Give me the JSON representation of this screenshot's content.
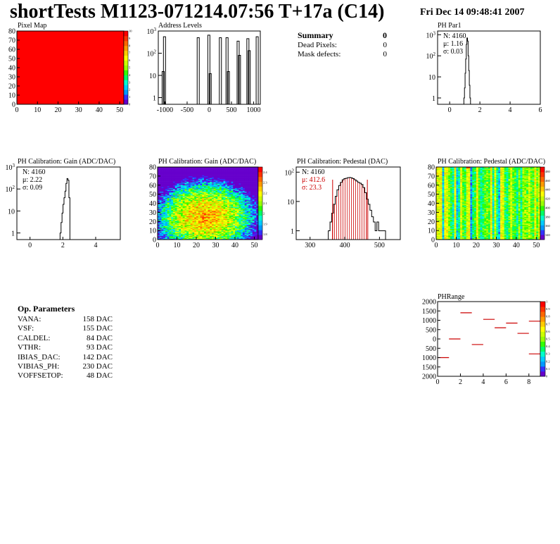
{
  "header": {
    "title": "shortTests M1123-071214.07:56 T+17a (C14)",
    "date": "Fri Dec 14 09:48:41 2007"
  },
  "summary": {
    "title": "Summary",
    "value": "0",
    "rows": [
      {
        "label": "Dead Pixels:",
        "value": "0"
      },
      {
        "label": "Mask defects:",
        "value": "0"
      }
    ]
  },
  "op_parameters": {
    "title": "Op. Parameters",
    "rows": [
      {
        "label": "VANA:",
        "value": "158 DAC"
      },
      {
        "label": "VSF:",
        "value": "155 DAC"
      },
      {
        "label": "CALDEL:",
        "value": "84 DAC"
      },
      {
        "label": "VTHR:",
        "value": "93 DAC"
      },
      {
        "label": "IBIAS_DAC:",
        "value": "142 DAC"
      },
      {
        "label": "VIBIAS_PH:",
        "value": "230 DAC"
      },
      {
        "label": "VOFFSETOP:",
        "value": "48 DAC"
      }
    ]
  },
  "colors": {
    "palette": [
      "#6600cc",
      "#3333ff",
      "#0099ff",
      "#00ccff",
      "#00ffcc",
      "#00ff66",
      "#33ff00",
      "#99ff00",
      "#ccff00",
      "#ffff00",
      "#ffcc00",
      "#ff9900",
      "#ff6600",
      "#ff3300",
      "#ff0000"
    ],
    "stats_red": "#cc0000"
  },
  "chart_data": [
    {
      "id": "pixel-map",
      "type": "heatmap",
      "title": "Pixel Map",
      "x_ticks": [
        "0",
        "10",
        "20",
        "30",
        "40",
        "50"
      ],
      "y_ticks": [
        "0",
        "10",
        "20",
        "30",
        "40",
        "50",
        "60",
        "70",
        "80"
      ],
      "xlim": [
        0,
        52
      ],
      "ylim": [
        0,
        80
      ],
      "fill_value": 10,
      "z_ticks": [
        "0",
        "1",
        "2",
        "3",
        "4",
        "5",
        "6",
        "7",
        "8",
        "9",
        "10"
      ],
      "zlim": [
        0,
        10
      ]
    },
    {
      "id": "address-levels",
      "type": "bar",
      "title": "Address Levels",
      "log_y": true,
      "x_ticks": [
        "-1000",
        "-500",
        "0",
        "500",
        "1000"
      ],
      "xlim": [
        -1150,
        1150
      ],
      "y_ticks": [
        "1",
        "10",
        "10^2",
        "10^3"
      ],
      "ylim": [
        0.5,
        1000
      ],
      "peaks": [
        {
          "x": -1040,
          "value": 15
        },
        {
          "x": -1010,
          "value": 550
        },
        {
          "x": -250,
          "value": 500
        },
        {
          "x": -10,
          "value": 650
        },
        {
          "x": 20,
          "value": 12
        },
        {
          "x": 250,
          "value": 500
        },
        {
          "x": 400,
          "value": 500
        },
        {
          "x": 430,
          "value": 15
        },
        {
          "x": 650,
          "value": 350
        },
        {
          "x": 680,
          "value": 80
        },
        {
          "x": 870,
          "value": 450
        },
        {
          "x": 900,
          "value": 130
        },
        {
          "x": 1080,
          "value": 550
        }
      ]
    },
    {
      "id": "ph-par1",
      "type": "bar",
      "title": "PH Par1",
      "log_y": true,
      "x_ticks": [
        "0",
        "2",
        "4",
        "6"
      ],
      "xlim": [
        -0.8,
        6
      ],
      "y_ticks": [
        "1",
        "10",
        "10^2",
        "10^3"
      ],
      "ylim": [
        0.5,
        1500
      ],
      "stats": {
        "N": "N: 4160",
        "mean": "μ: 1.16",
        "rms": "σ: 0.03"
      },
      "x": [
        0.96,
        1.0,
        1.04,
        1.08,
        1.12,
        1.16,
        1.2,
        1.24,
        1.28,
        1.32,
        1.36
      ],
      "values": [
        1,
        3,
        15,
        70,
        350,
        700,
        500,
        100,
        20,
        4,
        1
      ]
    },
    {
      "id": "ph-gain-hist",
      "type": "bar",
      "title": "PH Calibration: Gain (ADC/DAC)",
      "log_y": true,
      "x_ticks": [
        "0",
        "2",
        "4"
      ],
      "xlim": [
        -0.8,
        5.5
      ],
      "y_ticks": [
        "1",
        "10",
        "10^2",
        "10^3"
      ],
      "ylim": [
        0.5,
        1000
      ],
      "stats": {
        "N": "N: 4160",
        "mean": "μ: 2.22",
        "rms": "σ: 0.09"
      },
      "x": [
        1.86,
        1.92,
        1.98,
        2.04,
        2.1,
        2.16,
        2.22,
        2.28,
        2.34,
        2.4
      ],
      "values": [
        1,
        3,
        8,
        20,
        40,
        80,
        180,
        300,
        250,
        40
      ]
    },
    {
      "id": "ph-gain-map",
      "type": "heatmap",
      "title": "PH Calibration: Gain (ADC/DAC)",
      "x_ticks": [
        "0",
        "10",
        "20",
        "30",
        "40",
        "50"
      ],
      "y_ticks": [
        "0",
        "10",
        "20",
        "30",
        "40",
        "50",
        "60",
        "70",
        "80"
      ],
      "xlim": [
        0,
        52
      ],
      "ylim": [
        0,
        80
      ],
      "z_ticks": [
        "1.8",
        "1.9",
        "2",
        "2.1",
        "2.2",
        "2.3",
        "2.4"
      ],
      "zlim": [
        1.75,
        2.45
      ]
    },
    {
      "id": "ph-pedestal-hist",
      "type": "bar",
      "title": "PH Calibration: Pedestal (DAC)",
      "log_y": true,
      "x_ticks": [
        "300",
        "400",
        "500"
      ],
      "xlim": [
        260,
        560
      ],
      "y_ticks": [
        "1",
        "10",
        "10^2"
      ],
      "ylim": [
        0.5,
        150
      ],
      "stats": {
        "N": "N: 4160",
        "mean": "μ: 412.6",
        "rms": "σ: 23.3"
      },
      "markers": [
        365,
        465
      ],
      "x": [
        355,
        360,
        365,
        370,
        375,
        380,
        385,
        390,
        395,
        400,
        405,
        410,
        415,
        420,
        425,
        430,
        435,
        440,
        445,
        450,
        455,
        460,
        465,
        470,
        475,
        480,
        485,
        490,
        495,
        500,
        505,
        510,
        515
      ],
      "values": [
        1,
        2,
        4,
        8,
        15,
        25,
        35,
        45,
        55,
        60,
        62,
        65,
        66,
        64,
        60,
        55,
        50,
        45,
        42,
        38,
        30,
        20,
        12,
        8,
        5,
        3,
        2,
        1,
        2,
        1,
        1,
        1,
        1
      ]
    },
    {
      "id": "ph-pedestal-map",
      "type": "heatmap",
      "title": "PH Calibration: Pedestal (ADC/DAC)",
      "x_ticks": [
        "0",
        "10",
        "20",
        "30",
        "40",
        "50"
      ],
      "y_ticks": [
        "0",
        "10",
        "20",
        "30",
        "40",
        "50",
        "60",
        "70",
        "80"
      ],
      "xlim": [
        0,
        52
      ],
      "ylim": [
        0,
        80
      ],
      "z_ticks": [
        "340",
        "360",
        "380",
        "400",
        "420",
        "440",
        "460",
        "480"
      ],
      "zlim": [
        330,
        490
      ]
    },
    {
      "id": "ph-range",
      "type": "scatter",
      "title": "PHRange",
      "x_ticks": [
        "0",
        "2",
        "4",
        "6",
        "8"
      ],
      "xlim": [
        0,
        9
      ],
      "y_ticks": [
        "2000",
        "1500",
        "1000",
        "500",
        "0",
        "500",
        "1000",
        "1500",
        "2000"
      ],
      "ylim": [
        -2000,
        2000
      ],
      "z_ticks": [
        "0",
        "0.1",
        "0.2",
        "0.3",
        "0.4",
        "0.5",
        "0.6",
        "0.7",
        "0.8",
        "0.9",
        "1"
      ],
      "zlim": [
        0,
        1
      ],
      "points": [
        {
          "x": 0,
          "y": -1000
        },
        {
          "x": 1,
          "y": 0
        },
        {
          "x": 2,
          "y": 1400
        },
        {
          "x": 3,
          "y": -300
        },
        {
          "x": 4,
          "y": 1050
        },
        {
          "x": 5,
          "y": 600
        },
        {
          "x": 6,
          "y": 850
        },
        {
          "x": 7,
          "y": 300
        },
        {
          "x": 8,
          "y": 950
        },
        {
          "x": 8,
          "y": -800
        }
      ]
    }
  ]
}
